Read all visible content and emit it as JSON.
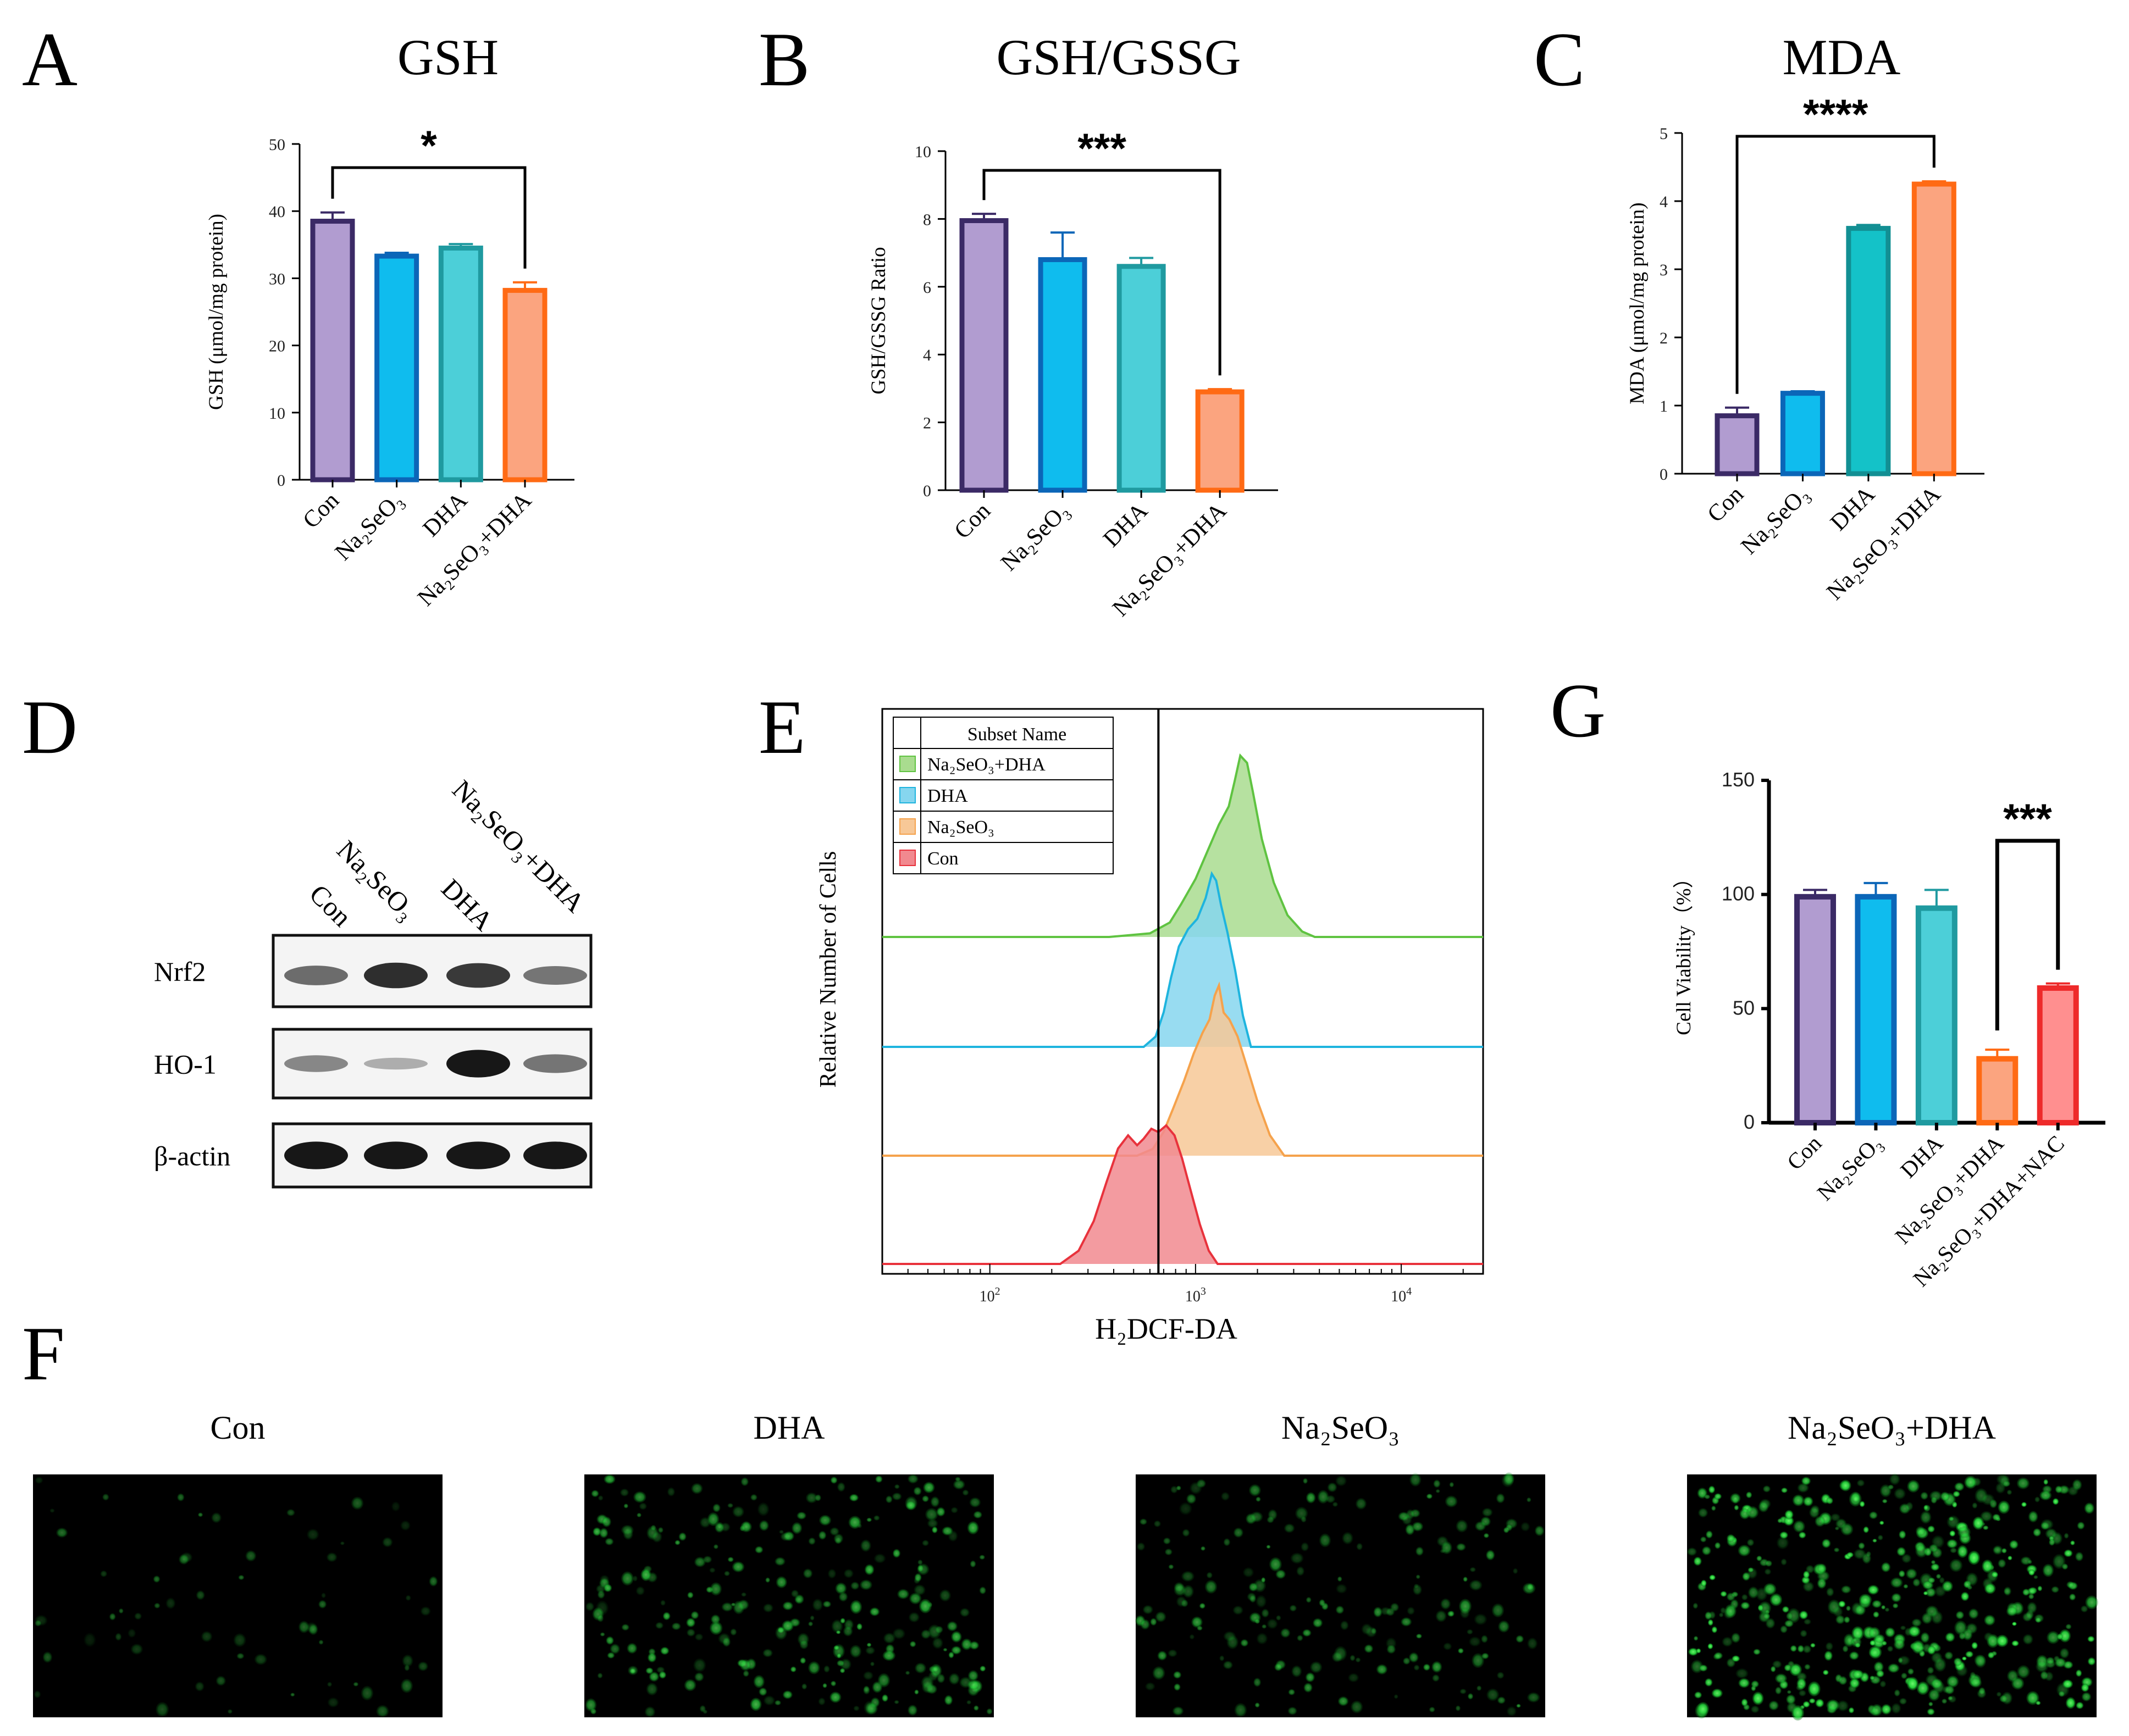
{
  "panels": {
    "A": "A",
    "B": "B",
    "C": "C",
    "D": "D",
    "E": "E",
    "F": "F",
    "G": "G"
  },
  "chart_data": [
    {
      "id": "A",
      "type": "bar",
      "title": "GSH",
      "ylabel": "GSH (μmol/mg protein)",
      "ylim": [
        0,
        50
      ],
      "yticks": [
        "0",
        "10",
        "20",
        "30",
        "40",
        "50"
      ],
      "categories": [
        "Con",
        "Na₂SeO₃",
        "DHA",
        "Na₂SeO₃+DHA"
      ],
      "values": [
        38.5,
        33.3,
        34.5,
        28.2
      ],
      "errors": [
        1.3,
        0.5,
        0.6,
        1.2
      ],
      "fill_colors": [
        "#b19cd0",
        "#0fbcee",
        "#4ccfd8",
        "#fba47f"
      ],
      "edge_colors": [
        "#3b2a66",
        "#0b66b8",
        "#1f9aa0",
        "#ff6a14"
      ],
      "significance": {
        "from": 0,
        "to": 3,
        "label": "*"
      }
    },
    {
      "id": "B",
      "type": "bar",
      "title": "GSH/GSSG",
      "ylabel": "GSH/GSSG Ratio",
      "ylim": [
        0,
        10
      ],
      "yticks": [
        "0",
        "2",
        "4",
        "6",
        "8",
        "10"
      ],
      "categories": [
        "Con",
        "Na₂SeO₃",
        "DHA",
        "Na₂SeO₃+DHA"
      ],
      "values": [
        7.95,
        6.8,
        6.6,
        2.9
      ],
      "errors": [
        0.2,
        0.8,
        0.25,
        0.08
      ],
      "fill_colors": [
        "#b19cd0",
        "#0fbcee",
        "#4ccfd8",
        "#fba47f"
      ],
      "edge_colors": [
        "#3b2a66",
        "#0b66b8",
        "#1f9aa0",
        "#ff6a14"
      ],
      "significance": {
        "from": 0,
        "to": 3,
        "label": "***"
      }
    },
    {
      "id": "C",
      "type": "bar",
      "title": "MDA",
      "ylabel": "MDA (μmol/mg protein)",
      "ylim": [
        0,
        5
      ],
      "yticks": [
        "0",
        "1",
        "2",
        "3",
        "4",
        "5"
      ],
      "categories": [
        "Con",
        "Na₂SeO₃",
        "DHA",
        "Na₂SeO₃+DHA"
      ],
      "values": [
        0.85,
        1.18,
        3.6,
        4.25
      ],
      "errors": [
        0.12,
        0.03,
        0.05,
        0.04
      ],
      "fill_colors": [
        "#b19cd0",
        "#0fbcee",
        "#14c2c8",
        "#fba47f"
      ],
      "edge_colors": [
        "#3b2a66",
        "#0b66b8",
        "#128f93",
        "#ff6a14"
      ],
      "significance": {
        "from": 0,
        "to": 3,
        "label": "****"
      }
    },
    {
      "id": "G",
      "type": "bar",
      "title": "",
      "ylabel": "Cell Viability（%）",
      "ylim": [
        0,
        150
      ],
      "yticks": [
        "0",
        "50",
        "100",
        "150"
      ],
      "categories": [
        "Con",
        "Na₂SeO₃",
        "DHA",
        "Na₂SeO₃+DHA",
        "Na₂SeO₃+DHA+NAC"
      ],
      "values": [
        99,
        99,
        94,
        28,
        59
      ],
      "errors": [
        3,
        6,
        8,
        4,
        2
      ],
      "fill_colors": [
        "#b19cd0",
        "#0fbcee",
        "#4ccfd8",
        "#fba47f",
        "#ff8f8f"
      ],
      "edge_colors": [
        "#3b2a66",
        "#0b66b8",
        "#1f9aa0",
        "#ff6a14",
        "#ee2a2a"
      ],
      "significance": {
        "from": 3,
        "to": 4,
        "label": "***"
      }
    },
    {
      "id": "E",
      "type": "area",
      "title": "",
      "xlabel": "H₂DCF-DA",
      "ylabel": "Relative Number of Cells",
      "x_scale": "log",
      "xlim": [
        30,
        25000
      ],
      "xticks": [
        {
          "value": 100,
          "base": "10",
          "exp": "2"
        },
        {
          "value": 1000,
          "base": "10",
          "exp": "3"
        },
        {
          "value": 10000,
          "base": "10",
          "exp": "4"
        }
      ],
      "gate_line": 660,
      "legend_title": "Subset Name",
      "series": [
        {
          "name": "Na₂SeO₃+DHA",
          "color": "#5fc341",
          "fill": "#a9dc8f",
          "x": [
            380,
            600,
            750,
            850,
            1000,
            1150,
            1300,
            1450,
            1550,
            1650,
            1780,
            1900,
            2100,
            2400,
            2800,
            3300,
            3800
          ],
          "y": [
            0,
            2,
            8,
            18,
            32,
            48,
            62,
            72,
            86,
            100,
            96,
            80,
            54,
            30,
            12,
            3,
            0
          ]
        },
        {
          "name": "DHA",
          "color": "#1eb4de",
          "fill": "#86d6ef",
          "x": [
            560,
            640,
            700,
            760,
            830,
            920,
            1020,
            1120,
            1200,
            1260,
            1330,
            1430,
            1560,
            1700,
            1860
          ],
          "y": [
            0,
            6,
            20,
            40,
            58,
            68,
            74,
            86,
            100,
            96,
            82,
            66,
            44,
            18,
            0
          ]
        },
        {
          "name": "Na₂SeO₃",
          "color": "#f5a24c",
          "fill": "#f7c897",
          "x": [
            520,
            620,
            700,
            780,
            880,
            980,
            1080,
            1170,
            1240,
            1300,
            1370,
            1460,
            1600,
            1780,
            2000,
            2300,
            2700
          ],
          "y": [
            0,
            4,
            14,
            28,
            44,
            60,
            72,
            80,
            94,
            100,
            84,
            80,
            70,
            52,
            32,
            12,
            0
          ]
        },
        {
          "name": "Con",
          "color": "#e8323c",
          "fill": "#f1898f",
          "x": [
            220,
            270,
            320,
            370,
            420,
            470,
            520,
            560,
            610,
            660,
            720,
            790,
            860,
            950,
            1050,
            1160,
            1280
          ],
          "y": [
            0,
            8,
            26,
            50,
            70,
            78,
            72,
            76,
            82,
            80,
            84,
            78,
            64,
            44,
            24,
            8,
            0
          ]
        }
      ]
    }
  ],
  "western_blot": {
    "lanes": [
      "Con",
      "Na₂SeO₃",
      "DHA",
      "Na₂SeO₃+DHA"
    ],
    "rows": [
      {
        "label": "Nrf2",
        "intensities": [
          0.55,
          0.85,
          0.8,
          0.5
        ]
      },
      {
        "label": "HO-1",
        "intensities": [
          0.4,
          0.15,
          0.95,
          0.5
        ]
      },
      {
        "label": "β-actin",
        "intensities": [
          0.95,
          0.95,
          0.95,
          0.95
        ]
      }
    ]
  },
  "micrographs": {
    "titles": [
      "Con",
      "DHA",
      "Na₂SeO₃",
      "Na₂SeO₃+DHA"
    ],
    "cell_density": [
      0.12,
      0.55,
      0.4,
      0.95
    ]
  }
}
